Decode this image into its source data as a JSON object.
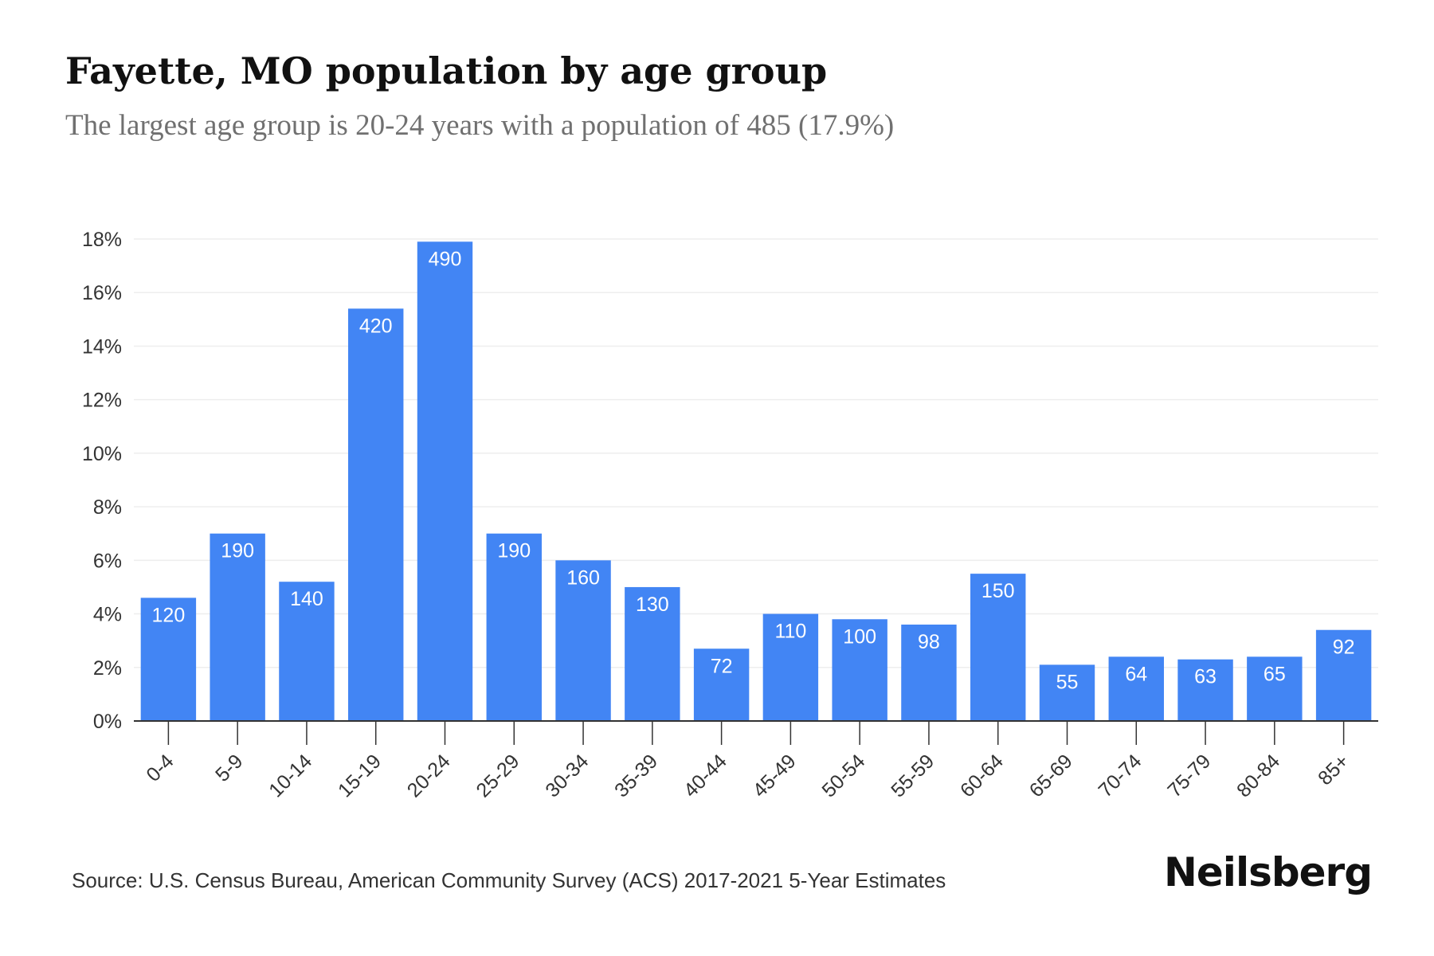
{
  "header": {
    "title": "Fayette, MO population by age group",
    "subtitle": "The largest age group is 20-24 years with a population of 485 (17.9%)"
  },
  "footer": {
    "source": "Source: U.S. Census Bureau, American Community Survey (ACS) 2017-2021 5-Year Estimates",
    "brand": "Neilsberg"
  },
  "colors": {
    "bar": "#4285f4",
    "grid": "#eeeeee",
    "axis": "#333333"
  },
  "chart_data": {
    "type": "bar",
    "categories": [
      "0-4",
      "5-9",
      "10-14",
      "15-19",
      "20-24",
      "25-29",
      "30-34",
      "35-39",
      "40-44",
      "45-49",
      "50-54",
      "55-59",
      "60-64",
      "65-69",
      "70-74",
      "75-79",
      "80-84",
      "85+"
    ],
    "values": [
      4.6,
      7.0,
      5.2,
      15.4,
      17.9,
      7.0,
      6.0,
      5.0,
      2.7,
      4.0,
      3.8,
      3.6,
      5.5,
      2.1,
      2.4,
      2.3,
      2.4,
      3.4
    ],
    "data_labels": [
      "120",
      "190",
      "140",
      "420",
      "490",
      "190",
      "160",
      "130",
      "72",
      "110",
      "100",
      "98",
      "150",
      "55",
      "64",
      "63",
      "65",
      "92"
    ],
    "ylim": [
      0,
      18
    ],
    "yticks": [
      0,
      2,
      4,
      6,
      8,
      10,
      12,
      14,
      16,
      18
    ],
    "ytick_labels": [
      "0%",
      "2%",
      "4%",
      "6%",
      "8%",
      "10%",
      "12%",
      "14%",
      "16%",
      "18%"
    ],
    "grid": true,
    "legend": "none"
  }
}
